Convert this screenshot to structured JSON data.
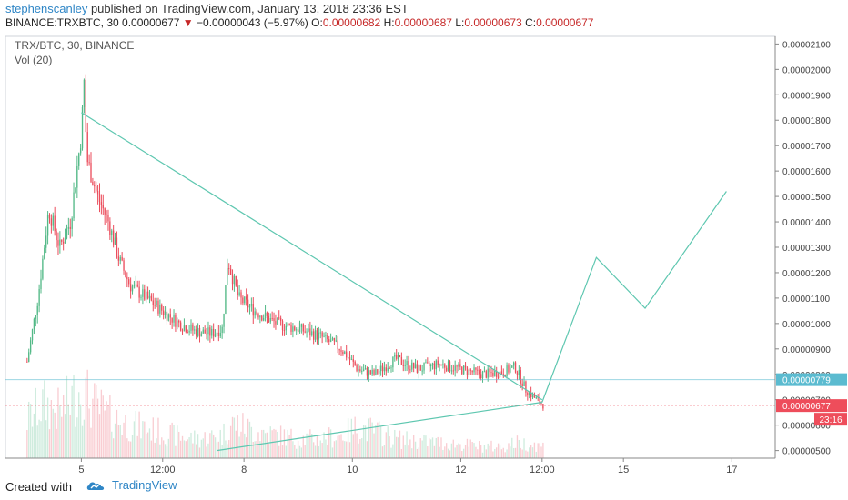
{
  "header": {
    "author": "stephenscanley",
    "published_text": " published on TradingView.com, January 13, 2018 23:36 EST",
    "symbol": "BINANCE:TRXBTC, 30",
    "last": "0.00000677",
    "change": "−0.00000043 (−5.97%)",
    "open_label": "O:",
    "open": "0.00000682",
    "high_label": "H:",
    "high": "0.00000687",
    "low_label": "L:",
    "low": "0.00000673",
    "close_label": "C:",
    "close": "0.00000677",
    "down_arrow": "▼"
  },
  "legend": {
    "title": "TRX/BTC, 30, BINANCE",
    "vol": "Vol (20)"
  },
  "footer": {
    "created_with": "Created with",
    "brand": "TradingView"
  },
  "colors": {
    "up": "#53b987",
    "down": "#eb4d5c",
    "trendline": "#5ec7b0",
    "price_badge": "#ee4d5b",
    "marker_badge": "#5bbbd0",
    "axis": "#444444"
  },
  "chart_data": {
    "type": "candlestick",
    "y_axis_ticks": [
      "0.00002100",
      "0.00002000",
      "0.00001900",
      "0.00001800",
      "0.00001700",
      "0.00001600",
      "0.00001500",
      "0.00001400",
      "0.00001300",
      "0.00001200",
      "0.00001100",
      "0.00001000",
      "0.00000900",
      "0.00000800",
      "0.00000700",
      "0.00000600",
      "0.00000500"
    ],
    "x_axis_ticks": [
      "5",
      "12:00",
      "8",
      "10",
      "12",
      "12:00",
      "15",
      "17"
    ],
    "price_badges": [
      {
        "label": "0.00000779",
        "value": 7.79e-06,
        "kind": "marker"
      },
      {
        "label": "0.00000677",
        "value": 6.77e-06,
        "kind": "price"
      },
      {
        "label": "23:16",
        "value": 6.5e-06,
        "kind": "timer"
      }
    ],
    "trendlines": [
      {
        "name": "upper",
        "points": [
          [
            5.0,
            1.83e-05
          ],
          [
            13.5,
            7e-06
          ]
        ]
      },
      {
        "name": "lower",
        "points": [
          [
            7.5,
            5e-06
          ],
          [
            13.5,
            6.9e-06
          ]
        ]
      },
      {
        "name": "projection",
        "points": [
          [
            13.5,
            6.9e-06
          ],
          [
            14.5,
            1.26e-05
          ],
          [
            15.4,
            1.06e-05
          ],
          [
            16.9,
            1.52e-05
          ]
        ]
      }
    ],
    "price_path": [
      [
        4.0,
        8.5e-06
      ],
      [
        4.2,
        1.1e-05
      ],
      [
        4.4,
        1.45e-05
      ],
      [
        4.6,
        1.3e-05
      ],
      [
        4.8,
        1.4e-05
      ],
      [
        5.0,
        1.75e-05
      ],
      [
        5.05,
        1.95e-05
      ],
      [
        5.1,
        1.65e-05
      ],
      [
        5.3,
        1.5e-05
      ],
      [
        5.5,
        1.4e-05
      ],
      [
        5.7,
        1.25e-05
      ],
      [
        5.9,
        1.15e-05
      ],
      [
        6.2,
        1.1e-05
      ],
      [
        6.5,
        1.05e-05
      ],
      [
        6.8,
        1e-05
      ],
      [
        7.1,
        9.7e-06
      ],
      [
        7.4,
        9.6e-06
      ],
      [
        7.6,
        9.8e-06
      ],
      [
        7.7,
        1.25e-05
      ],
      [
        7.9,
        1.1e-05
      ],
      [
        8.2,
        1.05e-05
      ],
      [
        8.6,
        1e-05
      ],
      [
        9.0,
        9.8e-06
      ],
      [
        9.4,
        9.5e-06
      ],
      [
        9.8,
        9e-06
      ],
      [
        10.1,
        8.2e-06
      ],
      [
        10.4,
        8e-06
      ],
      [
        10.8,
        8.6e-06
      ],
      [
        11.2,
        8.2e-06
      ],
      [
        11.6,
        8.4e-06
      ],
      [
        12.0,
        8.2e-06
      ],
      [
        12.4,
        8e-06
      ],
      [
        12.8,
        8.1e-06
      ],
      [
        13.0,
        8.3e-06
      ],
      [
        13.2,
        7.4e-06
      ],
      [
        13.4,
        7e-06
      ],
      [
        13.55,
        6.77e-06
      ]
    ],
    "volume_profile": [
      [
        4.0,
        0.5
      ],
      [
        4.3,
        0.7
      ],
      [
        4.6,
        0.6
      ],
      [
        5.0,
        0.9
      ],
      [
        5.2,
        0.7
      ],
      [
        5.5,
        0.55
      ],
      [
        5.8,
        0.45
      ],
      [
        6.1,
        0.4
      ],
      [
        6.4,
        0.35
      ],
      [
        6.8,
        0.28
      ],
      [
        7.2,
        0.25
      ],
      [
        7.6,
        0.3
      ],
      [
        7.8,
        0.45
      ],
      [
        8.2,
        0.35
      ],
      [
        8.6,
        0.3
      ],
      [
        9.0,
        0.25
      ],
      [
        9.4,
        0.25
      ],
      [
        9.8,
        0.3
      ],
      [
        10.1,
        0.4
      ],
      [
        10.4,
        0.35
      ],
      [
        10.8,
        0.25
      ],
      [
        11.2,
        0.22
      ],
      [
        11.6,
        0.2
      ],
      [
        12.0,
        0.18
      ],
      [
        12.4,
        0.15
      ],
      [
        12.8,
        0.15
      ],
      [
        13.0,
        0.2
      ],
      [
        13.3,
        0.18
      ],
      [
        13.55,
        0.15
      ]
    ]
  }
}
